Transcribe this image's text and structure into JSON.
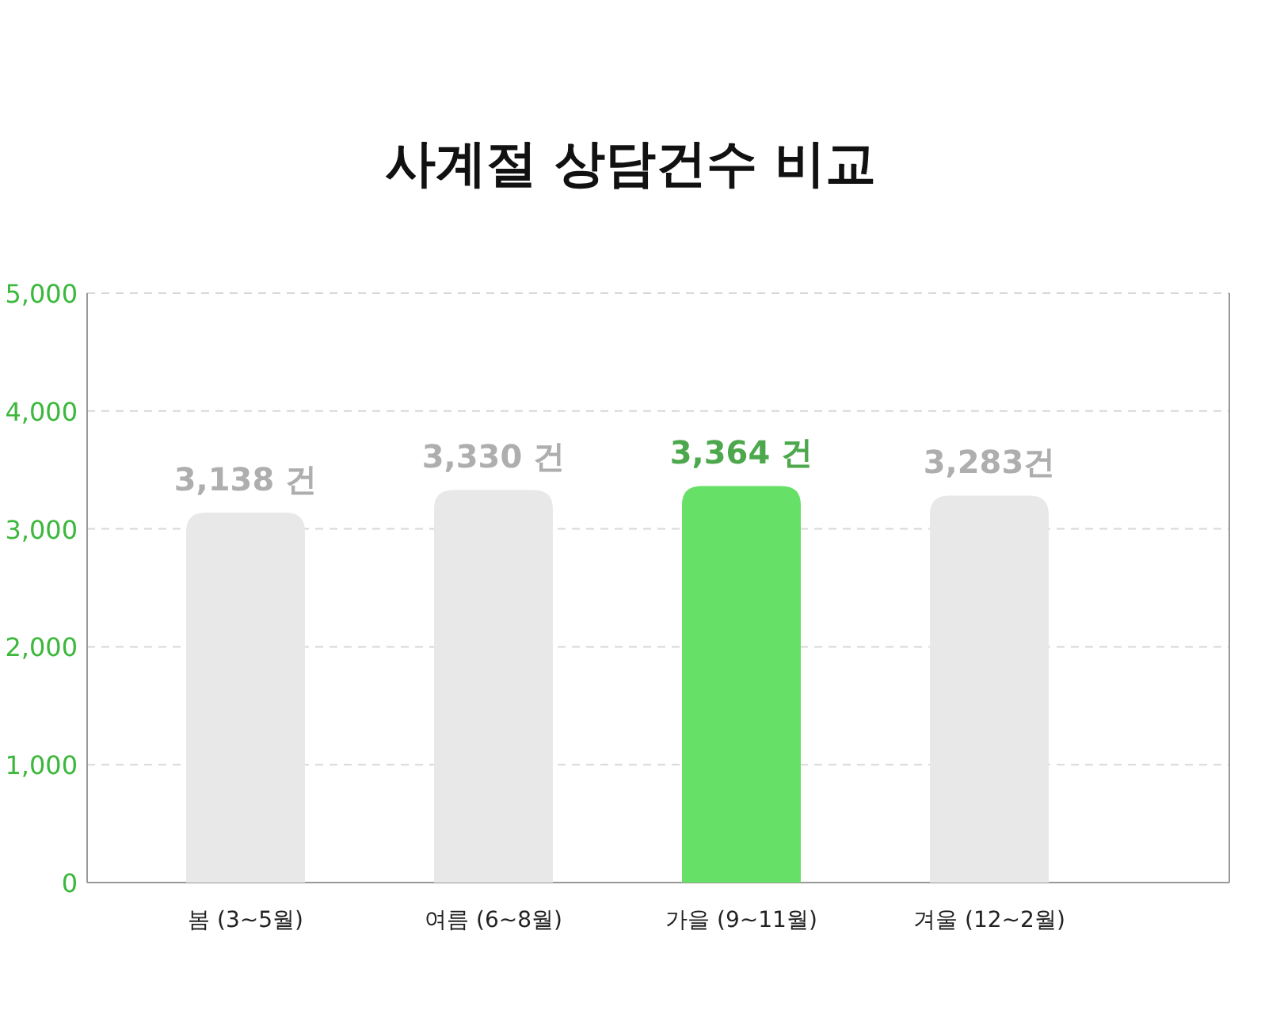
{
  "chart_data": {
    "type": "bar",
    "title": "사계절 상담건수 비교",
    "categories": [
      "봄 (3~5월)",
      "여름 (6~8월)",
      "가을 (9~11월)",
      "겨울 (12~2월)"
    ],
    "values": [
      3138,
      3330,
      3364,
      3283
    ],
    "colors": [
      "#e8e8e8",
      "#e8e8e8",
      "#66e066",
      "#e8e8e8"
    ],
    "value_labels": [
      "3,138 건",
      "3,330 건",
      "3,364 건",
      "3,283건"
    ],
    "ylim": [
      0,
      5000
    ],
    "yticks": [
      {
        "value": 0,
        "label": "0"
      },
      {
        "value": 1000,
        "label": "1,000"
      },
      {
        "value": 2000,
        "label": "2,000"
      },
      {
        "value": 3000,
        "label": "3,000"
      },
      {
        "value": 4000,
        "label": "4,000"
      },
      {
        "value": 5000,
        "label": "5,000"
      }
    ],
    "grid": "y"
  }
}
